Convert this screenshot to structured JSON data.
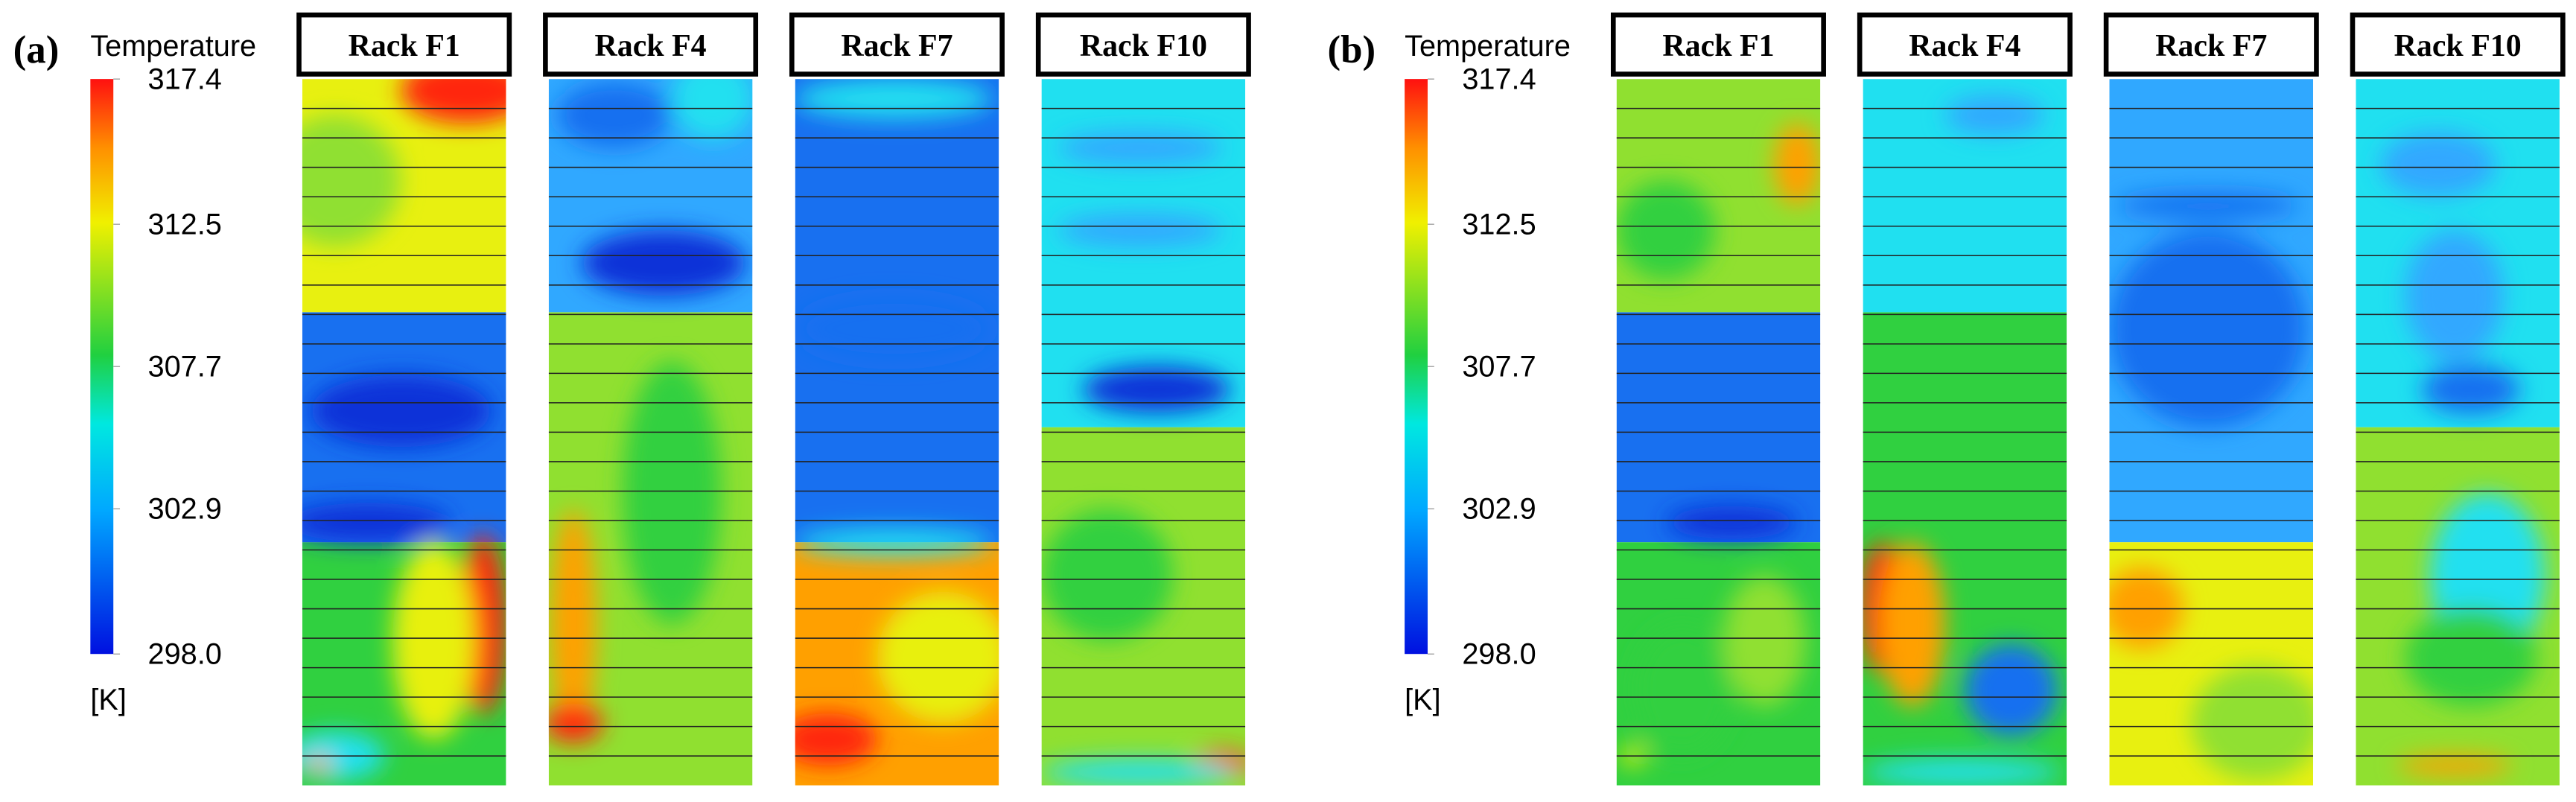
{
  "panels": [
    {
      "label": "(a)",
      "colorbar": {
        "title": "Temperature",
        "unit": "[K]",
        "range": [
          298,
          317.4
        ],
        "ticks": [
          317.4,
          312.5,
          307.7,
          302.9,
          {
            "value": 298,
            "label": "298.0"
          }
        ]
      },
      "racks": [
        "Rack F1",
        "Rack F4",
        "Rack F7",
        "Rack F10"
      ]
    },
    {
      "label": "(b)",
      "colorbar": {
        "title": "Temperature",
        "unit": "[K]",
        "range": [
          298,
          317.4
        ],
        "ticks": [
          317.4,
          312.5,
          307.7,
          302.9,
          {
            "value": 298,
            "label": "298.0"
          }
        ]
      },
      "racks": [
        "Rack F1",
        "Rack F4",
        "Rack F7",
        "Rack F10"
      ]
    }
  ]
}
